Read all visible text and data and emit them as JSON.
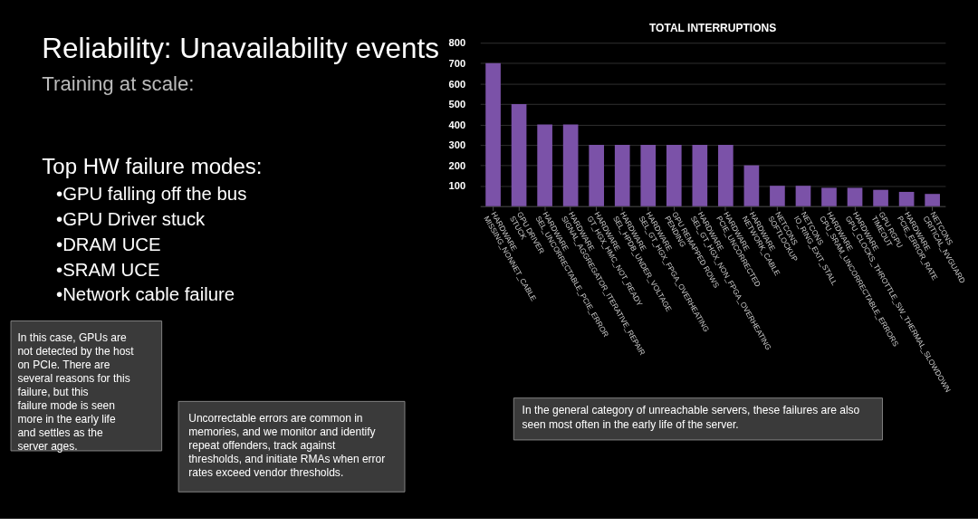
{
  "chart_data": {
    "type": "bar",
    "title": "TOTAL INTERRUPTIONS",
    "categories": [
      "HARDWARE\nMISSING_NONNET_CABLE",
      "GPU DRIVER\nSTUCK",
      "HARDWARE\nSEL_UNCORRECTABLE_PCIE_ERROR",
      "HARDWARE\nSIGNAL_AGGREGATOR_ITERATIVE_REPAIR",
      "HARDWARE\nGT_HGX_HMC_NOT_READY",
      "HARDWARE\nSEL_HPDB_UNDER_VOLTAGE",
      "HARDWARE\nSEL_GT_HGX_FPGA_OVERHEATING",
      "GPU REMAPPED ROWS\nPENDING",
      "HARDWARE\nSEL_GT_HGX_NON_FPGA_OVERHEATING",
      "HARDWARE\nPCIE_UNCORRECTED",
      "HARDWARE\nNETWORK_CABLE",
      "NETCONS\nSOFTLOCKUP",
      "NETCONS\nIO_RING_EXIT_STALL",
      "HARDWARE\nCPU_SRAM_UNCORRECTABLE_ERRORS",
      "HARDWARE\nGPU_CLOCKS_THROTTLE_SW_THERMAL_SLOWDOWN",
      "GPU RGPU\nTIMEOUT",
      "HARDWARE\nPCIE_ERROR_RATE",
      "NETCONS\nCRITICAL_NVGUARD"
    ],
    "values": [
      700,
      500,
      400,
      400,
      300,
      300,
      300,
      300,
      300,
      300,
      200,
      100,
      100,
      90,
      90,
      80,
      70,
      60
    ],
    "color": "#7b52a8",
    "ylim": [
      0,
      800
    ],
    "yticks": [
      100,
      200,
      300,
      400,
      500,
      600,
      700,
      800
    ],
    "grid": "y",
    "annotations": [
      "Reliability:  Unavailability events",
      "Training at scale:",
      "Top HW failure modes:",
      "•GPU falling off the bus",
      "•GPU Driver stuck",
      "•DRAM UCE",
      "•SRAM UCE",
      "•Network cable failure",
      "In this case, GPUs are not detected by the host on PCIe. There are several reasons for this failure, but this failure mode is seen more in the early life and settles as the server ages.",
      "Uncorrectable errors are common in memories, and we monitor and identify repeat offenders, track against thresholds, and initiate RMAs when error rates exceed vendor thresholds.",
      "In the general category of unreachable servers, these failures are also seen most often in the early life of the server."
    ]
  }
}
